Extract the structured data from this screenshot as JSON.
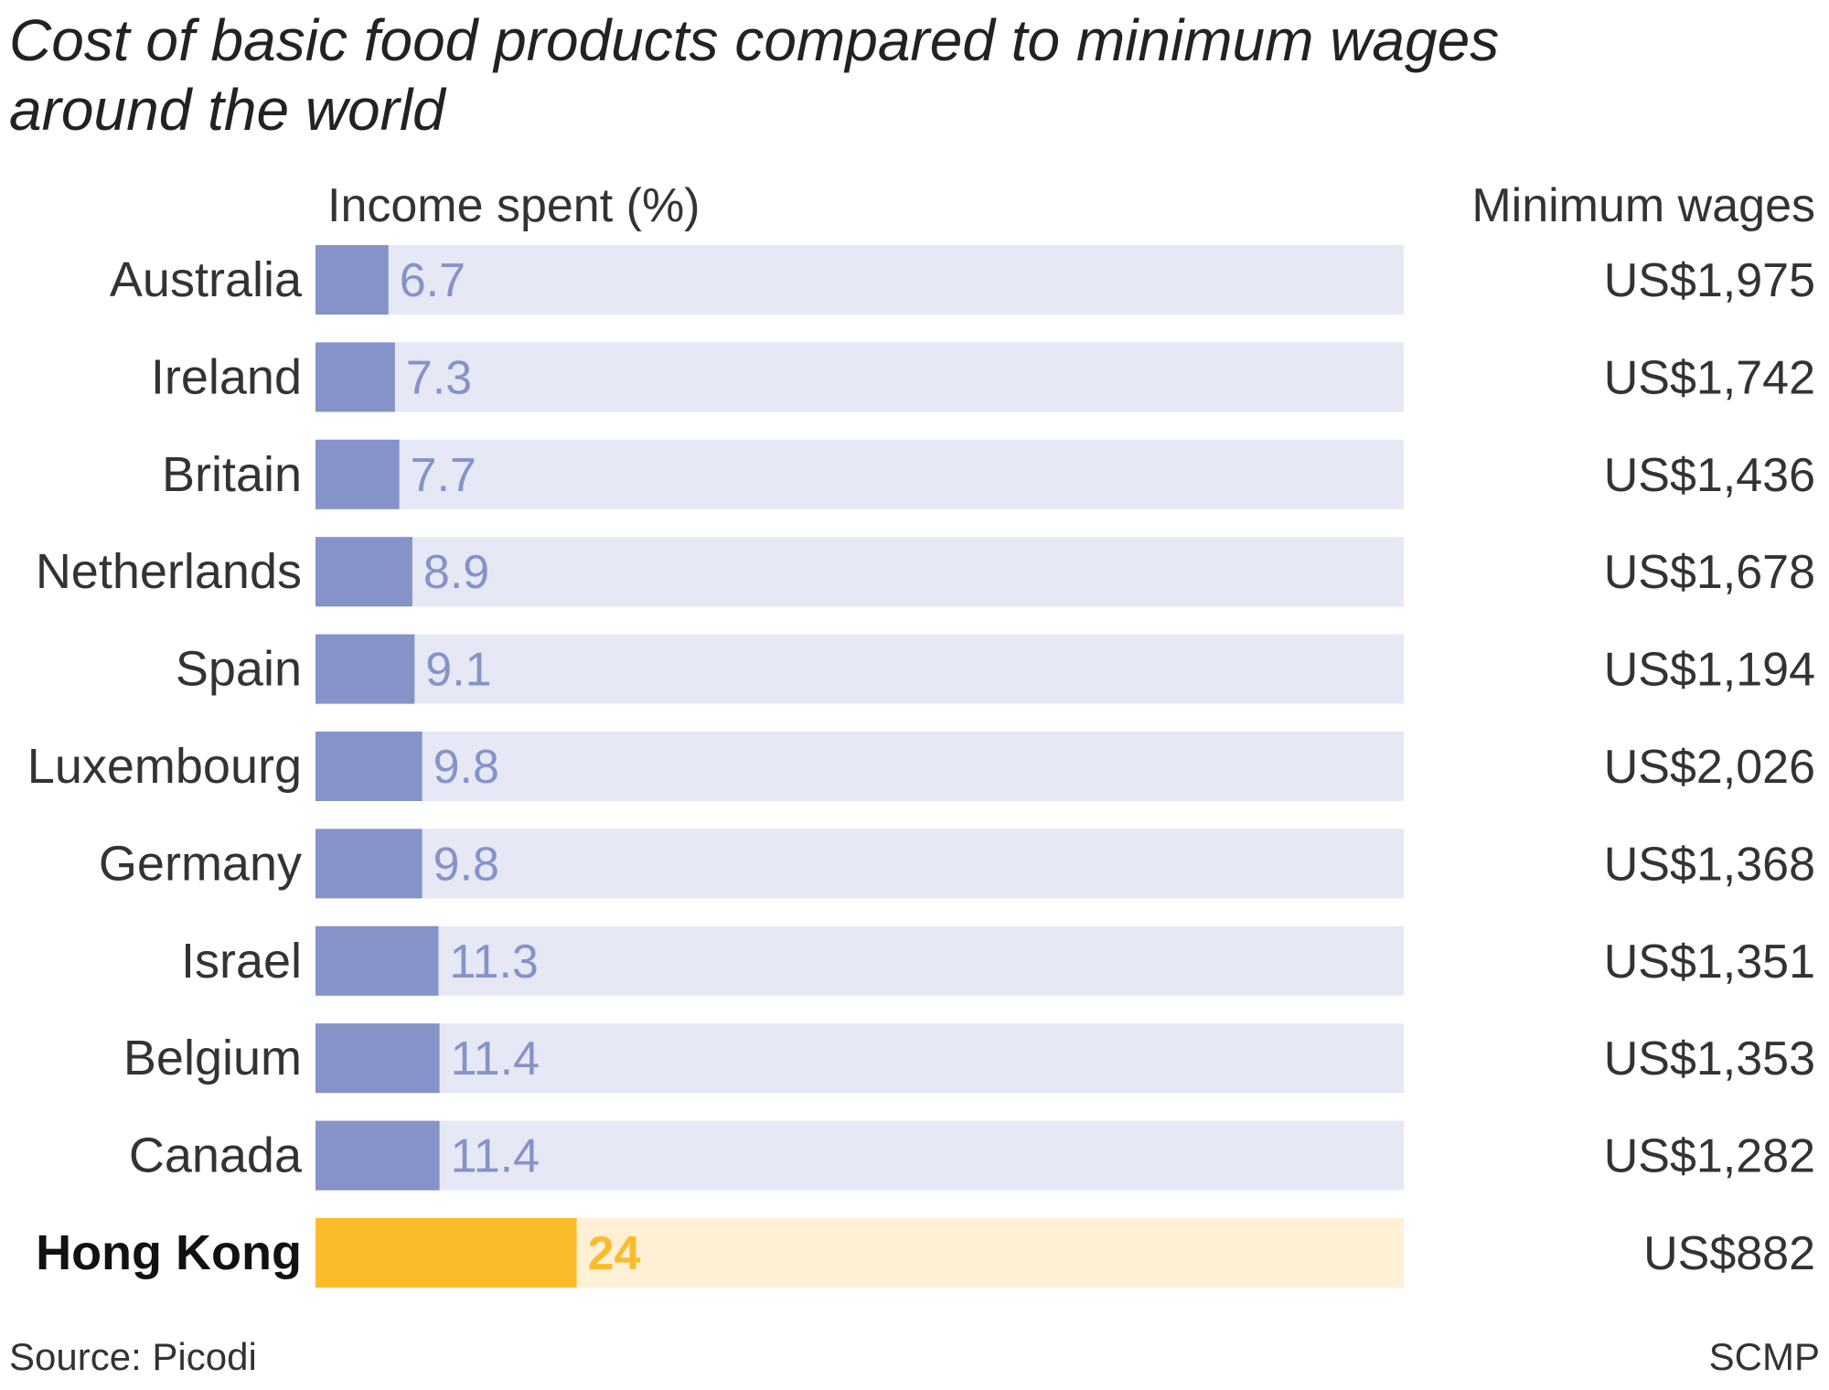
{
  "chart_data": {
    "type": "bar",
    "orientation": "horizontal",
    "title": "Cost of basic food products compared to minimum wages around the world",
    "value_header": "Income spent (%)",
    "wage_header": "Minimum wages",
    "xlim": [
      0,
      100
    ],
    "categories": [
      "Australia",
      "Ireland",
      "Britain",
      "Netherlands",
      "Spain",
      "Luxembourg",
      "Germany",
      "Israel",
      "Belgium",
      "Canada",
      "Hong Kong"
    ],
    "series": [
      {
        "values": [
          6.7,
          7.3,
          7.7,
          8.9,
          9.1,
          9.8,
          9.8,
          11.3,
          11.4,
          11.4,
          24
        ]
      }
    ],
    "value_labels": [
      "6.7",
      "7.3",
      "7.7",
      "8.9",
      "9.1",
      "9.8",
      "9.8",
      "11.3",
      "11.4",
      "11.4",
      "24"
    ],
    "minimum_wages": [
      "US$1,975",
      "US$1,742",
      "US$1,436",
      "US$1,678",
      "US$1,194",
      "US$2,026",
      "US$1,368",
      "US$1,351",
      "US$1,353",
      "US$1,282",
      "US$882"
    ],
    "highlight": "Hong Kong",
    "grid": false,
    "legend": "none",
    "colors": {
      "bar": "#8593c9",
      "track": "#e6e8f5",
      "bar_label": "#8593c9",
      "highlight_bar": "#fbbc2b",
      "highlight_track": "#fff0d6",
      "highlight_label": "#fbbc2b",
      "text": "#222222"
    }
  },
  "footer": {
    "source": "Source: Picodi",
    "credit": "SCMP"
  }
}
